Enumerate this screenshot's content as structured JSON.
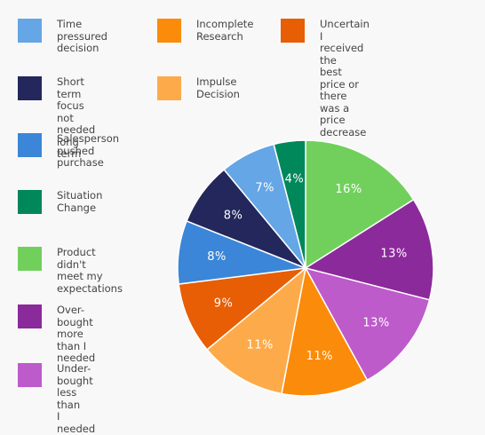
{
  "chart_data": {
    "type": "pie",
    "title": "",
    "slices": [
      {
        "label": "Product didn't\nmeet my\nexpectations",
        "value": 16,
        "display": "16%",
        "color": "#71d05c"
      },
      {
        "label": "Over-bought\nmore than I\nneeded",
        "value": 13,
        "display": "13%",
        "color": "#8b2a9a"
      },
      {
        "label": "Under-bought\nless than\nI needed",
        "value": 13,
        "display": "13%",
        "color": "#bd5bcb"
      },
      {
        "label": "Incomplete\nResearch",
        "value": 11,
        "display": "11%",
        "color": "#fb8b0a"
      },
      {
        "label": "Impulse\nDecision",
        "value": 11,
        "display": "11%",
        "color": "#fdab4a"
      },
      {
        "label": "Uncertain I received the\nbest price or there was a\nprice decrease",
        "value": 9,
        "display": "9%",
        "color": "#e75e05"
      },
      {
        "label": "Salesperson\npushed\npurchase",
        "value": 8,
        "display": "8%",
        "color": "#3b86d8"
      },
      {
        "label": "Short term focus\nnot needed\nlong term",
        "value": 8,
        "display": "8%",
        "color": "#23275b"
      },
      {
        "label": "Time pressured\ndecision",
        "value": 7,
        "display": "7%",
        "color": "#64a6e6"
      },
      {
        "label": "Situation\nChange",
        "value": 4,
        "display": "4%",
        "color": "#00875a"
      }
    ],
    "legend_placement": "left"
  },
  "legend": [
    {
      "label": "Time pressured\ndecision",
      "color": "#64a6e6"
    },
    {
      "label": "Short term focus\nnot needed\nlong term",
      "color": "#23275b"
    },
    {
      "label": "Salesperson\npushed\npurchase",
      "color": "#3b86d8"
    },
    {
      "label": "Situation\nChange",
      "color": "#00875a"
    },
    {
      "label": "Product didn't\nmeet my\nexpectations",
      "color": "#71d05c"
    },
    {
      "label": "Over-bought\nmore than I\nneeded",
      "color": "#8b2a9a"
    },
    {
      "label": "Under-bought\nless than\nI needed",
      "color": "#bd5bcb"
    },
    {
      "label": "Incomplete\nResearch",
      "color": "#fb8b0a"
    },
    {
      "label": "Impulse\nDecision",
      "color": "#fdab4a"
    },
    {
      "label": "Uncertain I received the\nbest price or there was a\nprice decrease",
      "color": "#e75e05"
    }
  ]
}
